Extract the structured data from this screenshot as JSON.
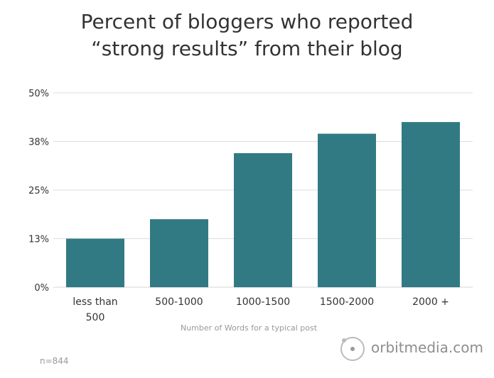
{
  "chart_data": {
    "type": "bar",
    "title": [
      "Percent of bloggers who reported",
      "“strong results” from their blog"
    ],
    "xlabel": "Number of Words for a typical post",
    "ylabel": "",
    "categories": [
      [
        "less than",
        "500"
      ],
      [
        "500-1000"
      ],
      [
        "1000-1500"
      ],
      [
        "1500-2000"
      ],
      [
        "2000 +"
      ]
    ],
    "values": [
      12.5,
      17.5,
      34.5,
      39.5,
      42.5
    ],
    "yticks": [
      "0%",
      "13%",
      "25%",
      "38%",
      "50%"
    ],
    "ylim": [
      0,
      50
    ],
    "grid": true,
    "bar_color": "#327a83"
  },
  "footnote": "n=844",
  "brand": {
    "name": "orbitmedia.com",
    "mark": "orbit-logo-icon"
  },
  "colors": {
    "grid": "#dddddd",
    "text": "#333333",
    "muted": "#999999"
  }
}
